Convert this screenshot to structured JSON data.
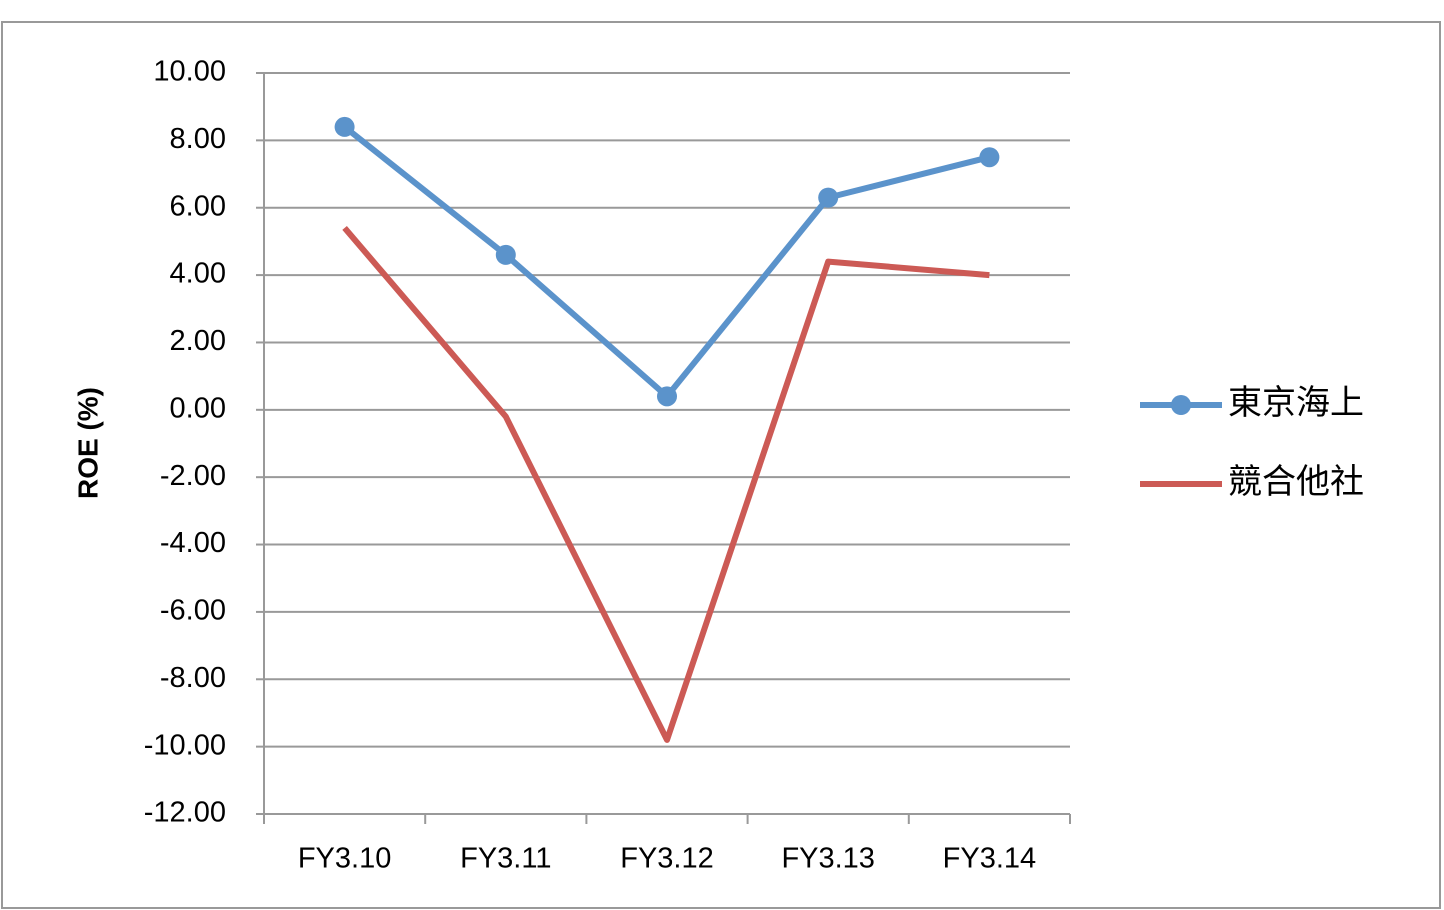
{
  "chart_data": {
    "type": "line",
    "y_label": "ROE (%)",
    "categories": [
      "FY3.10",
      "FY3.11",
      "FY3.12",
      "FY3.13",
      "FY3.14"
    ],
    "series": [
      {
        "name": "東京海上",
        "color": "#5b93cb",
        "marker": "circle",
        "values": [
          8.4,
          4.6,
          0.4,
          6.3,
          7.5
        ]
      },
      {
        "name": "競合他社",
        "color": "#cc5a55",
        "values": [
          5.4,
          -0.2,
          -9.8,
          4.4,
          4.0
        ]
      }
    ],
    "ylim": [
      -12,
      10
    ],
    "yticks": [
      {
        "value": -12,
        "label": "-12.00"
      },
      {
        "value": -10,
        "label": "-10.00"
      },
      {
        "value": -8,
        "label": "-8.00"
      },
      {
        "value": -6,
        "label": "-6.00"
      },
      {
        "value": -4,
        "label": "-4.00"
      },
      {
        "value": -2,
        "label": "-2.00"
      },
      {
        "value": 0,
        "label": "0.00"
      },
      {
        "value": 2,
        "label": "2.00"
      },
      {
        "value": 4,
        "label": "4.00"
      },
      {
        "value": 6,
        "label": "6.00"
      },
      {
        "value": 8,
        "label": "8.00"
      },
      {
        "value": 10,
        "label": "10.00"
      }
    ],
    "grid": true,
    "legend": "right"
  }
}
